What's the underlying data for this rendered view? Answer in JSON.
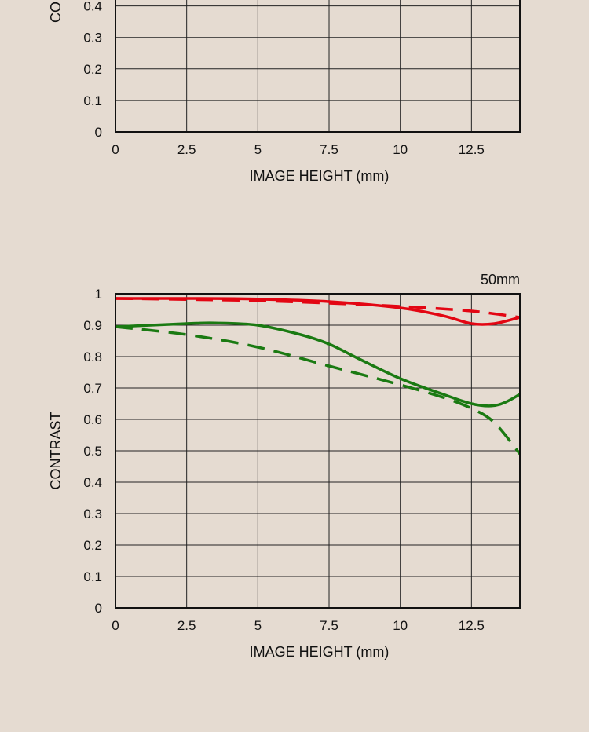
{
  "colors": {
    "background": "#e5dbd1",
    "red": "#e30613",
    "green": "#1a7a12"
  },
  "chart_data": [
    {
      "type": "line",
      "title": "",
      "xlabel": "IMAGE HEIGHT (mm)",
      "ylabel": "CO",
      "xlim": [
        0,
        14.2
      ],
      "ylim": [
        0,
        1
      ],
      "xticks": [
        "0",
        "2.5",
        "5",
        "7.5",
        "10",
        "12.5"
      ],
      "yticks": [
        "0",
        "0.1",
        "0.2",
        "0.3",
        "0.4"
      ],
      "grid": true,
      "series": []
    },
    {
      "type": "line",
      "title": "50mm",
      "xlabel": "IMAGE HEIGHT (mm)",
      "ylabel": "CONTRAST",
      "xlim": [
        0,
        14.2
      ],
      "ylim": [
        0,
        1
      ],
      "xticks": [
        "0",
        "2.5",
        "5",
        "7.5",
        "10",
        "12.5"
      ],
      "yticks": [
        "0",
        "0.1",
        "0.2",
        "0.3",
        "0.4",
        "0.5",
        "0.6",
        "0.7",
        "0.8",
        "0.9",
        "1"
      ],
      "grid": true,
      "series": [
        {
          "color": "red",
          "dash": false,
          "x": [
            0,
            2.5,
            5,
            7.5,
            10,
            11.5,
            12.5,
            13.3,
            14.2
          ],
          "y": [
            0.985,
            0.985,
            0.983,
            0.975,
            0.955,
            0.93,
            0.905,
            0.905,
            0.925
          ]
        },
        {
          "color": "red",
          "dash": true,
          "x": [
            0,
            2.5,
            5,
            7.5,
            10,
            12.5,
            14.2
          ],
          "y": [
            0.985,
            0.982,
            0.978,
            0.97,
            0.96,
            0.945,
            0.925
          ]
        },
        {
          "color": "green",
          "dash": false,
          "x": [
            0,
            2.5,
            3.5,
            5,
            6.5,
            7.5,
            8.5,
            10,
            11.5,
            12.5,
            13.2,
            13.7,
            14.2
          ],
          "y": [
            0.895,
            0.905,
            0.907,
            0.9,
            0.87,
            0.84,
            0.795,
            0.73,
            0.68,
            0.65,
            0.643,
            0.655,
            0.68
          ]
        },
        {
          "color": "green",
          "dash": true,
          "x": [
            0,
            2.5,
            5,
            7.5,
            10,
            11.5,
            12.5,
            13.3,
            14.2
          ],
          "y": [
            0.895,
            0.87,
            0.83,
            0.77,
            0.71,
            0.67,
            0.635,
            0.59,
            0.49
          ]
        }
      ]
    }
  ]
}
